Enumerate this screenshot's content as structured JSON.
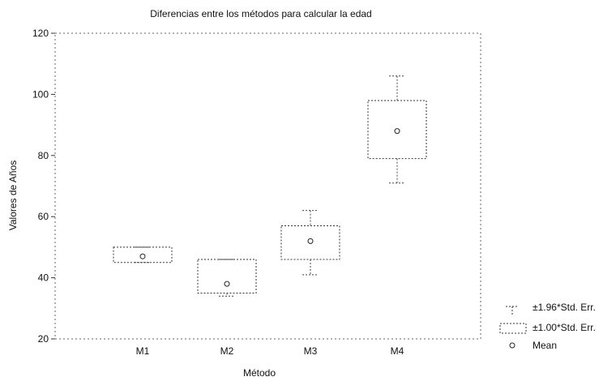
{
  "chart_data": {
    "type": "box",
    "title": "Diferencias entre los métodos para calcular la edad",
    "xlabel": "Método",
    "ylabel": "Valores de Años",
    "ylim": [
      20,
      120
    ],
    "yticks": [
      20,
      40,
      60,
      80,
      100,
      120
    ],
    "categories": [
      "M1",
      "M2",
      "M3",
      "M4"
    ],
    "groups": [
      {
        "name": "M1",
        "mean": 47,
        "se_low": 45,
        "se_high": 50,
        "ci_low": 45,
        "ci_high": 50
      },
      {
        "name": "M2",
        "mean": 38,
        "se_low": 35,
        "se_high": 46,
        "ci_low": 34,
        "ci_high": 46
      },
      {
        "name": "M3",
        "mean": 52,
        "se_low": 46,
        "se_high": 57,
        "ci_low": 41,
        "ci_high": 62
      },
      {
        "name": "M4",
        "mean": 88,
        "se_low": 79,
        "se_high": 98,
        "ci_low": 71,
        "ci_high": 106
      }
    ],
    "legend": {
      "position": "bottom-right",
      "items": [
        "±1.96*Std. Err.",
        "±1.00*Std. Err.",
        "Mean"
      ]
    }
  }
}
